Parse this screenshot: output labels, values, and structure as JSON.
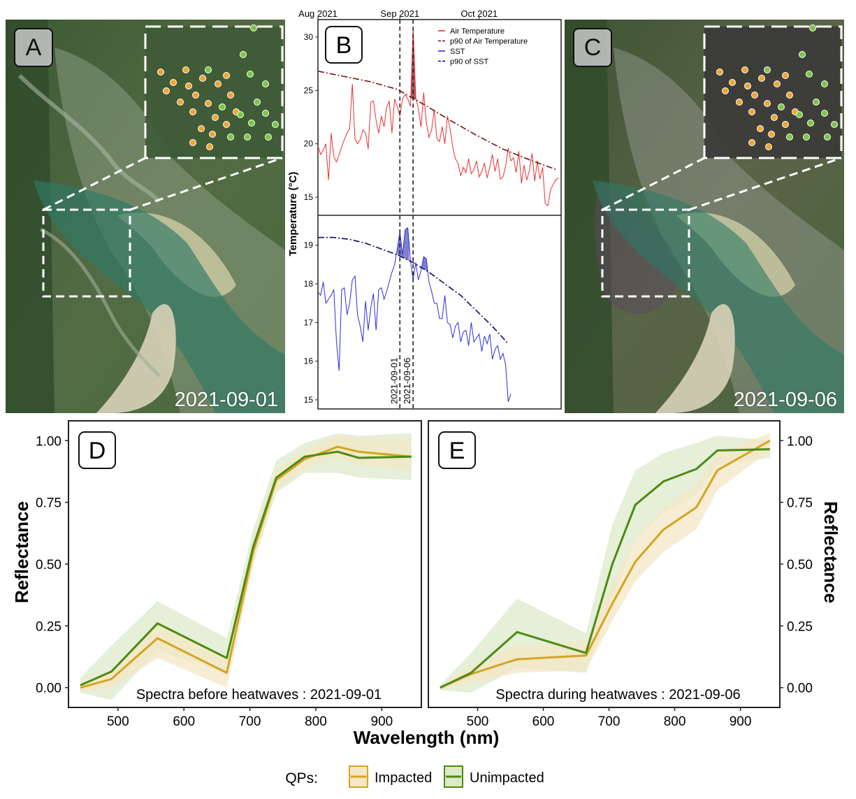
{
  "panels": {
    "a": {
      "letter": "A",
      "date": "2021-09-01"
    },
    "c": {
      "letter": "C",
      "date": "2021-09-06"
    }
  },
  "colors": {
    "air": "#e8302d",
    "air_p90": "#7b1010",
    "sst": "#2a2ee0",
    "sst_p90": "#0c0c6e",
    "impacted": "#d4a51e",
    "unimpacted": "#4b8a14",
    "impacted_ribbon": "#f3e7c6",
    "unimpacted_ribbon": "#dde9c9",
    "qp_orange": "#f0a531",
    "qp_green": "#79c744"
  },
  "chart_data": [
    {
      "panel": "B",
      "type": "line",
      "ylabel": "Temperature (°C)",
      "top_axis_labels": [
        {
          "label": "Aug 2021",
          "day": 0
        },
        {
          "label": "Sep 2021",
          "day": 31
        },
        {
          "label": "Oct 2021",
          "day": 61
        }
      ],
      "event_lines": [
        {
          "label": "2021-09-01",
          "day": 31
        },
        {
          "label": "2021-09-06",
          "day": 36
        }
      ],
      "legend": [
        "Air Temperature",
        "p90 of Air Temperature",
        "SST",
        "p90 of SST"
      ],
      "legend_position": "top-right",
      "top": {
        "ylim": [
          13.5,
          31.5
        ],
        "yticks": [
          15,
          20,
          25,
          30
        ],
        "series": [
          {
            "name": "Air Temperature",
            "style": "solid",
            "x": [
              0,
              1,
              2,
              3,
              4,
              5,
              6,
              7,
              8,
              9,
              10,
              11,
              12,
              13,
              14,
              15,
              16,
              17,
              18,
              19,
              20,
              21,
              22,
              23,
              24,
              25,
              26,
              27,
              28,
              29,
              30,
              31,
              32,
              33,
              34,
              35,
              36,
              37,
              38,
              39,
              40,
              41,
              42,
              43,
              44,
              45,
              46,
              47,
              48,
              49,
              50,
              51,
              52,
              53,
              54,
              55,
              56,
              57,
              58,
              59,
              60,
              61,
              62,
              63,
              64,
              65,
              66,
              67,
              68,
              69,
              70,
              71,
              72,
              73,
              74,
              75,
              76,
              77,
              78,
              79,
              80,
              81,
              82,
              83,
              84,
              85,
              86,
              87,
              88,
              89,
              90,
              91
            ],
            "values": [
              19.8,
              19,
              19.4,
              20,
              16.6,
              21,
              18.8,
              18.3,
              19,
              19.7,
              20.4,
              21,
              21.4,
              25.6,
              20.5,
              20,
              20.4,
              21.3,
              21,
              19.5,
              23.9,
              24,
              22.2,
              21,
              22.6,
              21.6,
              23.4,
              24,
              21,
              24.2,
              23.5,
              22.6,
              24.2,
              24.6,
              24.2,
              23.5,
              30.9,
              24.3,
              23.3,
              21.6,
              24.8,
              22,
              20.6,
              21.3,
              23.2,
              20.5,
              20.2,
              21.6,
              20,
              22.6,
              21.4,
              19.7,
              18.6,
              18.2,
              17,
              17.8,
              17.3,
              18.6,
              17.2,
              17.6,
              18.4,
              16.9,
              17.4,
              18.2,
              16.8,
              17.8,
              19,
              17.4,
              18.6,
              16.7,
              16.9,
              17.9,
              19.6,
              18.4,
              18.7,
              17.3,
              19.3,
              16.3,
              18,
              16.6,
              17.5,
              19.1,
              16.5,
              18.4,
              16.7,
              17.8,
              14.4,
              14.2,
              15.7,
              16.2,
              16.6,
              16.8
            ]
          },
          {
            "name": "p90 of Air Temperature",
            "style": "dashdot",
            "x": [
              0,
              10,
              20,
              30,
              40,
              50,
              60,
              70,
              80,
              90
            ],
            "values": [
              26.8,
              26.3,
              25.8,
              25.1,
              23.7,
              22.2,
              20.8,
              19.5,
              18.5,
              17.6
            ]
          }
        ],
        "exceedance": {
          "x_start": 35,
          "x_end": 37,
          "color": "#9b3b4a"
        }
      },
      "bottom": {
        "ylim": [
          14.8,
          19.7
        ],
        "yticks": [
          15,
          16,
          17,
          18,
          19
        ],
        "series": [
          {
            "name": "SST",
            "style": "solid",
            "x": [
              0,
              1,
              2,
              3,
              4,
              5,
              6,
              7,
              8,
              9,
              10,
              11,
              12,
              13,
              14,
              15,
              16,
              17,
              18,
              19,
              20,
              21,
              22,
              23,
              24,
              25,
              26,
              27,
              28,
              29,
              30,
              31,
              32,
              33,
              34,
              35,
              36,
              37,
              38,
              39,
              40,
              41,
              42,
              43,
              44,
              45,
              46,
              47,
              48,
              49,
              50,
              51,
              52,
              53,
              54,
              55,
              56,
              57,
              58,
              59,
              60,
              61,
              62,
              63,
              64,
              65,
              66,
              67,
              68,
              69,
              70,
              71,
              72,
              73
            ],
            "values": [
              17.8,
              17.7,
              18.05,
              17.5,
              17.6,
              17.7,
              17.85,
              16.5,
              15.75,
              17.85,
              17.9,
              17.2,
              17.5,
              18.1,
              18.2,
              17.2,
              16.9,
              16.5,
              17.55,
              16.8,
              17.4,
              17.75,
              16.8,
              17.85,
              17.9,
              17.6,
              17.8,
              18.05,
              18.3,
              18.5,
              18.9,
              19.35,
              18.75,
              19.4,
              19.45,
              18.6,
              18.1,
              18.55,
              18.1,
              18.35,
              18.7,
              18.65,
              18.05,
              17.8,
              17.5,
              17.5,
              17.1,
              17.1,
              17.7,
              17.0,
              16.95,
              16.6,
              16.9,
              17.0,
              16.5,
              16.75,
              16.8,
              16.4,
              17.0,
              16.5,
              16.6,
              16.7,
              16.25,
              16.65,
              16.45,
              16.7,
              16.05,
              16.3,
              16.4,
              16.05,
              16.2,
              15.9,
              14.95,
              15.15
            ]
          },
          {
            "name": "p90 of SST",
            "style": "dashdot",
            "x": [
              0,
              6,
              12,
              18,
              24,
              30,
              36,
              42,
              48,
              54,
              60,
              66,
              72
            ],
            "values": [
              19.2,
              19.2,
              19.15,
              19.05,
              18.9,
              18.75,
              18.55,
              18.3,
              18.0,
              17.7,
              17.3,
              16.9,
              16.45
            ]
          }
        ],
        "exceedance": [
          {
            "x_start": 30,
            "x_end": 34.5,
            "color": "#6a6ac0"
          },
          {
            "x_start": 38.5,
            "x_end": 41.5,
            "color": "#6a6ac0"
          }
        ]
      }
    },
    {
      "panel": "D",
      "type": "line",
      "ylabel": "Reflectance",
      "xlabel": "Wavelength (nm)",
      "annotation": "Spectra before heatwaves : 2021-09-01",
      "xlim": [
        425,
        960
      ],
      "ylim": [
        -0.08,
        1.08
      ],
      "xticks": [
        500,
        600,
        700,
        800,
        900
      ],
      "yticks": [
        0,
        0.25,
        0.5,
        0.75,
        1.0
      ],
      "ytick_labels": [
        "0.00",
        "0.25",
        "0.50",
        "0.75",
        "1.00"
      ],
      "x": [
        443,
        490,
        560,
        665,
        705,
        740,
        783,
        833,
        865,
        945
      ],
      "series": [
        {
          "name": "Impacted",
          "values": [
            0.0,
            0.035,
            0.2,
            0.06,
            0.55,
            0.84,
            0.925,
            0.975,
            0.955,
            0.935
          ],
          "lower": [
            -0.02,
            0.0,
            0.12,
            0.0,
            0.5,
            0.8,
            0.89,
            0.93,
            0.9,
            0.88
          ],
          "upper": [
            0.02,
            0.07,
            0.27,
            0.12,
            0.6,
            0.88,
            0.96,
            1.02,
            1.01,
            1.0
          ]
        },
        {
          "name": "Unimpacted",
          "values": [
            0.01,
            0.065,
            0.26,
            0.12,
            0.57,
            0.85,
            0.935,
            0.955,
            0.93,
            0.935
          ],
          "lower": [
            -0.02,
            -0.05,
            0.15,
            0.06,
            0.5,
            0.79,
            0.87,
            0.87,
            0.85,
            0.84
          ],
          "upper": [
            0.04,
            0.17,
            0.35,
            0.2,
            0.64,
            0.92,
            0.99,
            1.03,
            1.02,
            1.03
          ]
        }
      ]
    },
    {
      "panel": "E",
      "type": "line",
      "ylabel": "Reflectance",
      "annotation": "Spectra during heatwaves : 2021-09-06",
      "xlim": [
        425,
        960
      ],
      "ylim": [
        -0.08,
        1.08
      ],
      "xticks": [
        500,
        600,
        700,
        800,
        900
      ],
      "yticks": [
        0,
        0.25,
        0.5,
        0.75,
        1.0
      ],
      "ytick_labels": [
        "0.00",
        "0.25",
        "0.50",
        "0.75",
        "1.00"
      ],
      "x": [
        443,
        490,
        560,
        665,
        705,
        740,
        783,
        833,
        865,
        945
      ],
      "series": [
        {
          "name": "Impacted",
          "values": [
            0.0,
            0.055,
            0.115,
            0.13,
            0.34,
            0.51,
            0.64,
            0.73,
            0.88,
            1.0
          ],
          "lower": [
            -0.01,
            0.02,
            0.06,
            0.07,
            0.27,
            0.43,
            0.55,
            0.64,
            0.8,
            0.96
          ],
          "upper": [
            0.01,
            0.09,
            0.17,
            0.19,
            0.42,
            0.6,
            0.73,
            0.82,
            0.95,
            1.03
          ]
        },
        {
          "name": "Unimpacted",
          "values": [
            0.0,
            0.06,
            0.225,
            0.14,
            0.5,
            0.74,
            0.835,
            0.885,
            0.96,
            0.965
          ],
          "lower": [
            -0.01,
            -0.02,
            0.08,
            0.06,
            0.36,
            0.6,
            0.71,
            0.78,
            0.9,
            0.93
          ],
          "upper": [
            0.01,
            0.14,
            0.36,
            0.22,
            0.66,
            0.88,
            0.95,
            0.99,
            1.02,
            1.0
          ]
        }
      ]
    }
  ],
  "legend": {
    "title": "QPs:",
    "items": [
      "Impacted",
      "Unimpacted"
    ]
  }
}
